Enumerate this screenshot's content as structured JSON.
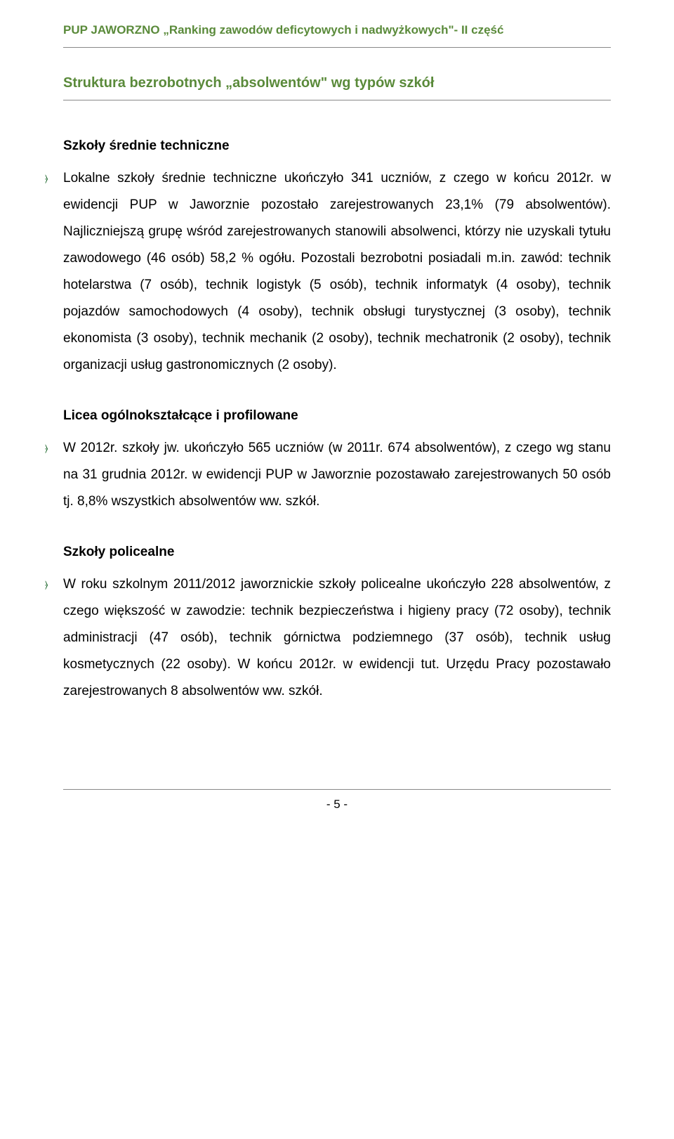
{
  "header": {
    "text": "PUP JAWORZNO „Ranking zawodów deficytowych i nadwyżkowych\"- II część"
  },
  "section": {
    "title": "Struktura  bezrobotnych „absolwentów\" wg typów szkół"
  },
  "sub1": {
    "title": "Szkoły średnie techniczne",
    "body": "Lokalne szkoły średnie techniczne ukończyło 341 uczniów, z czego w końcu 2012r. w ewidencji PUP w Jaworznie pozostało zarejestrowanych 23,1% (79 absolwentów). Najliczniejszą grupę wśród zarejestrowanych stanowili absolwenci, którzy nie uzyskali tytułu zawodowego (46 osób) 58,2 % ogółu. Pozostali bezrobotni posiadali m.in. zawód: technik hotelarstwa (7 osób), technik logistyk (5 osób), technik informatyk (4 osoby), technik pojazdów samochodowych (4 osoby), technik obsługi turystycznej (3 osoby), technik ekonomista (3 osoby), technik mechanik (2 osoby), technik mechatronik (2 osoby), technik organizacji usług gastronomicznych (2 osoby)."
  },
  "sub2": {
    "title": "Licea ogólnokształcące i profilowane",
    "body": "W 2012r. szkoły jw. ukończyło 565 uczniów (w 2011r. 674 absolwentów), z czego wg stanu na 31 grudnia 2012r. w ewidencji PUP w Jaworznie pozostawało zarejestrowanych 50 osób tj. 8,8% wszystkich absolwentów ww. szkół."
  },
  "sub3": {
    "title": "Szkoły policealne",
    "body": "W roku szkolnym 2011/2012 jaworznickie szkoły policealne ukończyło 228 absolwentów, z czego większość w zawodzie: technik bezpieczeństwa i higieny pracy (72 osoby), technik administracji (47 osób), technik górnictwa podziemnego (37 osób), technik usług kosmetycznych (22 osoby).  W końcu 2012r. w ewidencji tut. Urzędu Pracy pozostawało zarejestrowanych 8 absolwentów ww. szkół."
  },
  "footer": {
    "page": "- 5 -"
  },
  "bullet_glyph": "⦒",
  "colors": {
    "accent": "#5a8a3a",
    "bullet": "#0a5a1a",
    "rule": "#888888",
    "text": "#000000",
    "bg": "#ffffff"
  }
}
